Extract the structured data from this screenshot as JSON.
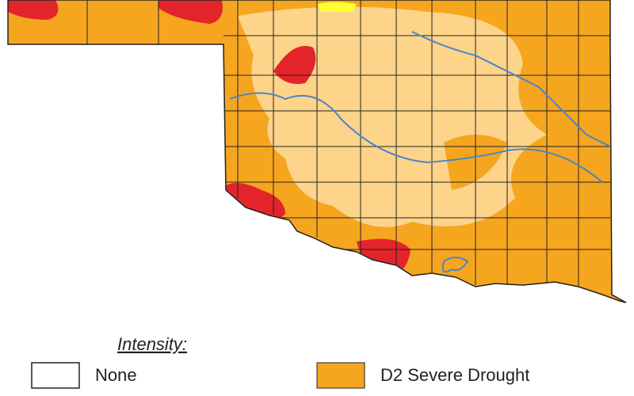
{
  "legend": {
    "title": "Intensity:",
    "items": [
      {
        "label": "None"
      },
      {
        "label": "D2 Severe Drought"
      }
    ]
  }
}
